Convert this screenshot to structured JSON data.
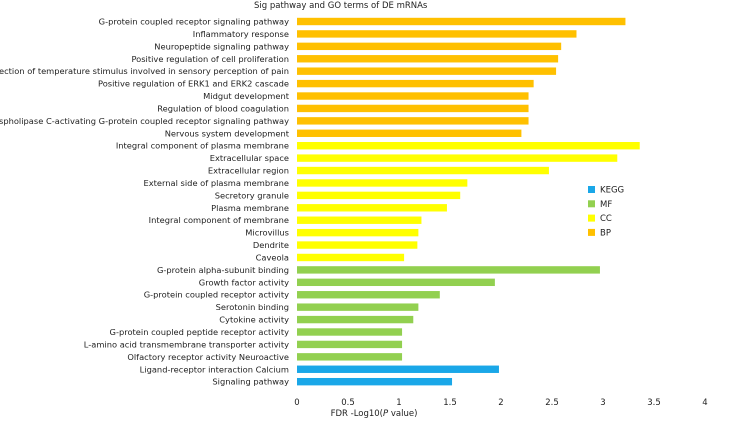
{
  "chart_data": {
    "type": "bar",
    "orientation": "horizontal",
    "title": "Sig pathway and GO terms of DE mRNAs",
    "xlabel_prefix": "FDR -Log10(",
    "xlabel_italic": "P",
    "xlabel_suffix": " value)",
    "xlim": [
      0,
      4
    ],
    "xticks": [
      0,
      0.5,
      1,
      1.5,
      2,
      2.5,
      3,
      3.5,
      4
    ],
    "xtick_labels": [
      "0",
      "0.5",
      "1",
      "1.5",
      "2",
      "2.5",
      "3",
      "3.5",
      "4"
    ],
    "legend": {
      "position": "right",
      "items": [
        {
          "name": "KEGG",
          "color": "#1AA7E8"
        },
        {
          "name": "MF",
          "color": "#92D050"
        },
        {
          "name": "CC",
          "color": "#FFFF00"
        },
        {
          "name": "BP",
          "color": "#FFC000"
        }
      ]
    },
    "categories": [
      "G-protein coupled receptor signaling pathway",
      "Inflammatory response",
      "Neuropeptide signaling pathway",
      "Positive regulation of cell proliferation",
      "Detection of temperature stimulus involved in sensory perception of pain",
      "Positive regulation of ERK1 and ERK2 cascade",
      "Midgut development",
      "Regulation of blood coagulation",
      "Phospholipase C-activating G-protein coupled receptor signaling pathway",
      "Nervous system development",
      "Integral component of plasma membrane",
      "Extracellular space",
      "Extracellular region",
      "External side of plasma membrane",
      "Secretory granule",
      "Plasma membrane",
      "Integral component of membrane",
      "Microvillus",
      "Dendrite",
      "Caveola",
      "G-protein alpha-subunit binding",
      "Growth factor activity",
      "G-protein coupled receptor activity",
      "Serotonin binding",
      "Cytokine activity",
      "G-protein coupled peptide receptor activity",
      "L-amino acid transmembrane transporter activity",
      "Olfactory receptor activity Neuroactive",
      "Ligand-receptor interaction Calcium",
      "Signaling pathway"
    ],
    "values": [
      3.22,
      2.74,
      2.59,
      2.56,
      2.54,
      2.32,
      2.27,
      2.27,
      2.27,
      2.2,
      3.36,
      3.14,
      2.47,
      1.67,
      1.6,
      1.47,
      1.22,
      1.19,
      1.18,
      1.05,
      2.97,
      1.94,
      1.4,
      1.19,
      1.14,
      1.03,
      1.03,
      1.03,
      1.98,
      1.52
    ],
    "groups": [
      "BP",
      "BP",
      "BP",
      "BP",
      "BP",
      "BP",
      "BP",
      "BP",
      "BP",
      "BP",
      "CC",
      "CC",
      "CC",
      "CC",
      "CC",
      "CC",
      "CC",
      "CC",
      "CC",
      "CC",
      "MF",
      "MF",
      "MF",
      "MF",
      "MF",
      "MF",
      "MF",
      "MF",
      "KEGG",
      "KEGG"
    ]
  }
}
